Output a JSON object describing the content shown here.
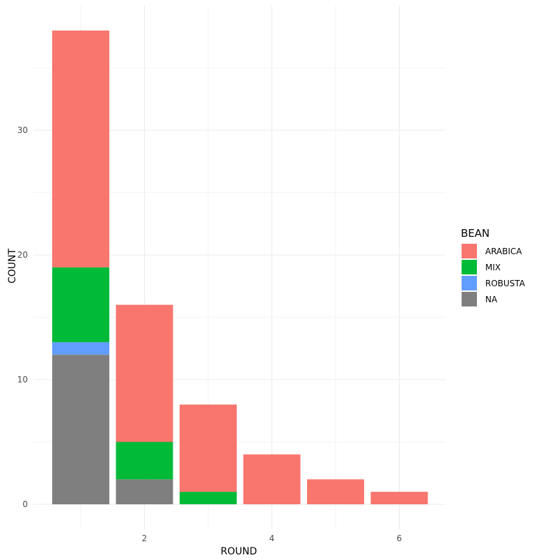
{
  "chart_data": {
    "type": "bar",
    "stacked": true,
    "title": "",
    "xlabel": "ROUND",
    "ylabel": "COUNT",
    "x": [
      1,
      2,
      3,
      4,
      5,
      6
    ],
    "xticks": [
      2,
      4,
      6
    ],
    "yticks": [
      0,
      10,
      20,
      30
    ],
    "ylim": [
      0,
      38
    ],
    "grid": true,
    "legend": {
      "title": "BEAN",
      "position": "right"
    },
    "series": [
      {
        "name": "NA",
        "color": "#7f7f7f",
        "values": [
          12,
          2,
          0,
          0,
          0,
          0
        ]
      },
      {
        "name": "ROBUSTA",
        "color": "#619cff",
        "values": [
          1,
          0,
          0,
          0,
          0,
          0
        ]
      },
      {
        "name": "MIX",
        "color": "#00ba38",
        "values": [
          6,
          3,
          1,
          0,
          0,
          0
        ]
      },
      {
        "name": "ARABICA",
        "color": "#f8766d",
        "values": [
          19,
          11,
          7,
          4,
          2,
          1
        ]
      }
    ],
    "legend_order": [
      "ARABICA",
      "MIX",
      "ROBUSTA",
      "NA"
    ]
  }
}
